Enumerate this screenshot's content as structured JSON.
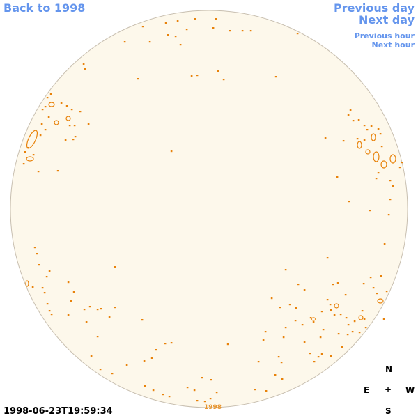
{
  "nav": {
    "back": "Back to 1998",
    "previous_day": "Previous day",
    "next_day": "Next day",
    "previous_hour": "Previous hour",
    "next_hour": "Next hour"
  },
  "timestamp": "1998-06-23T19:59:34",
  "year_label": "1998",
  "compass": {
    "n": "N",
    "e": "E",
    "center": "+",
    "w": "W",
    "s": "S"
  },
  "colors": {
    "disk_fill": "#fdf8eb",
    "disk_stroke": "#c8bfb0",
    "contour": "#e8820a",
    "nav": "#6495ed"
  }
}
